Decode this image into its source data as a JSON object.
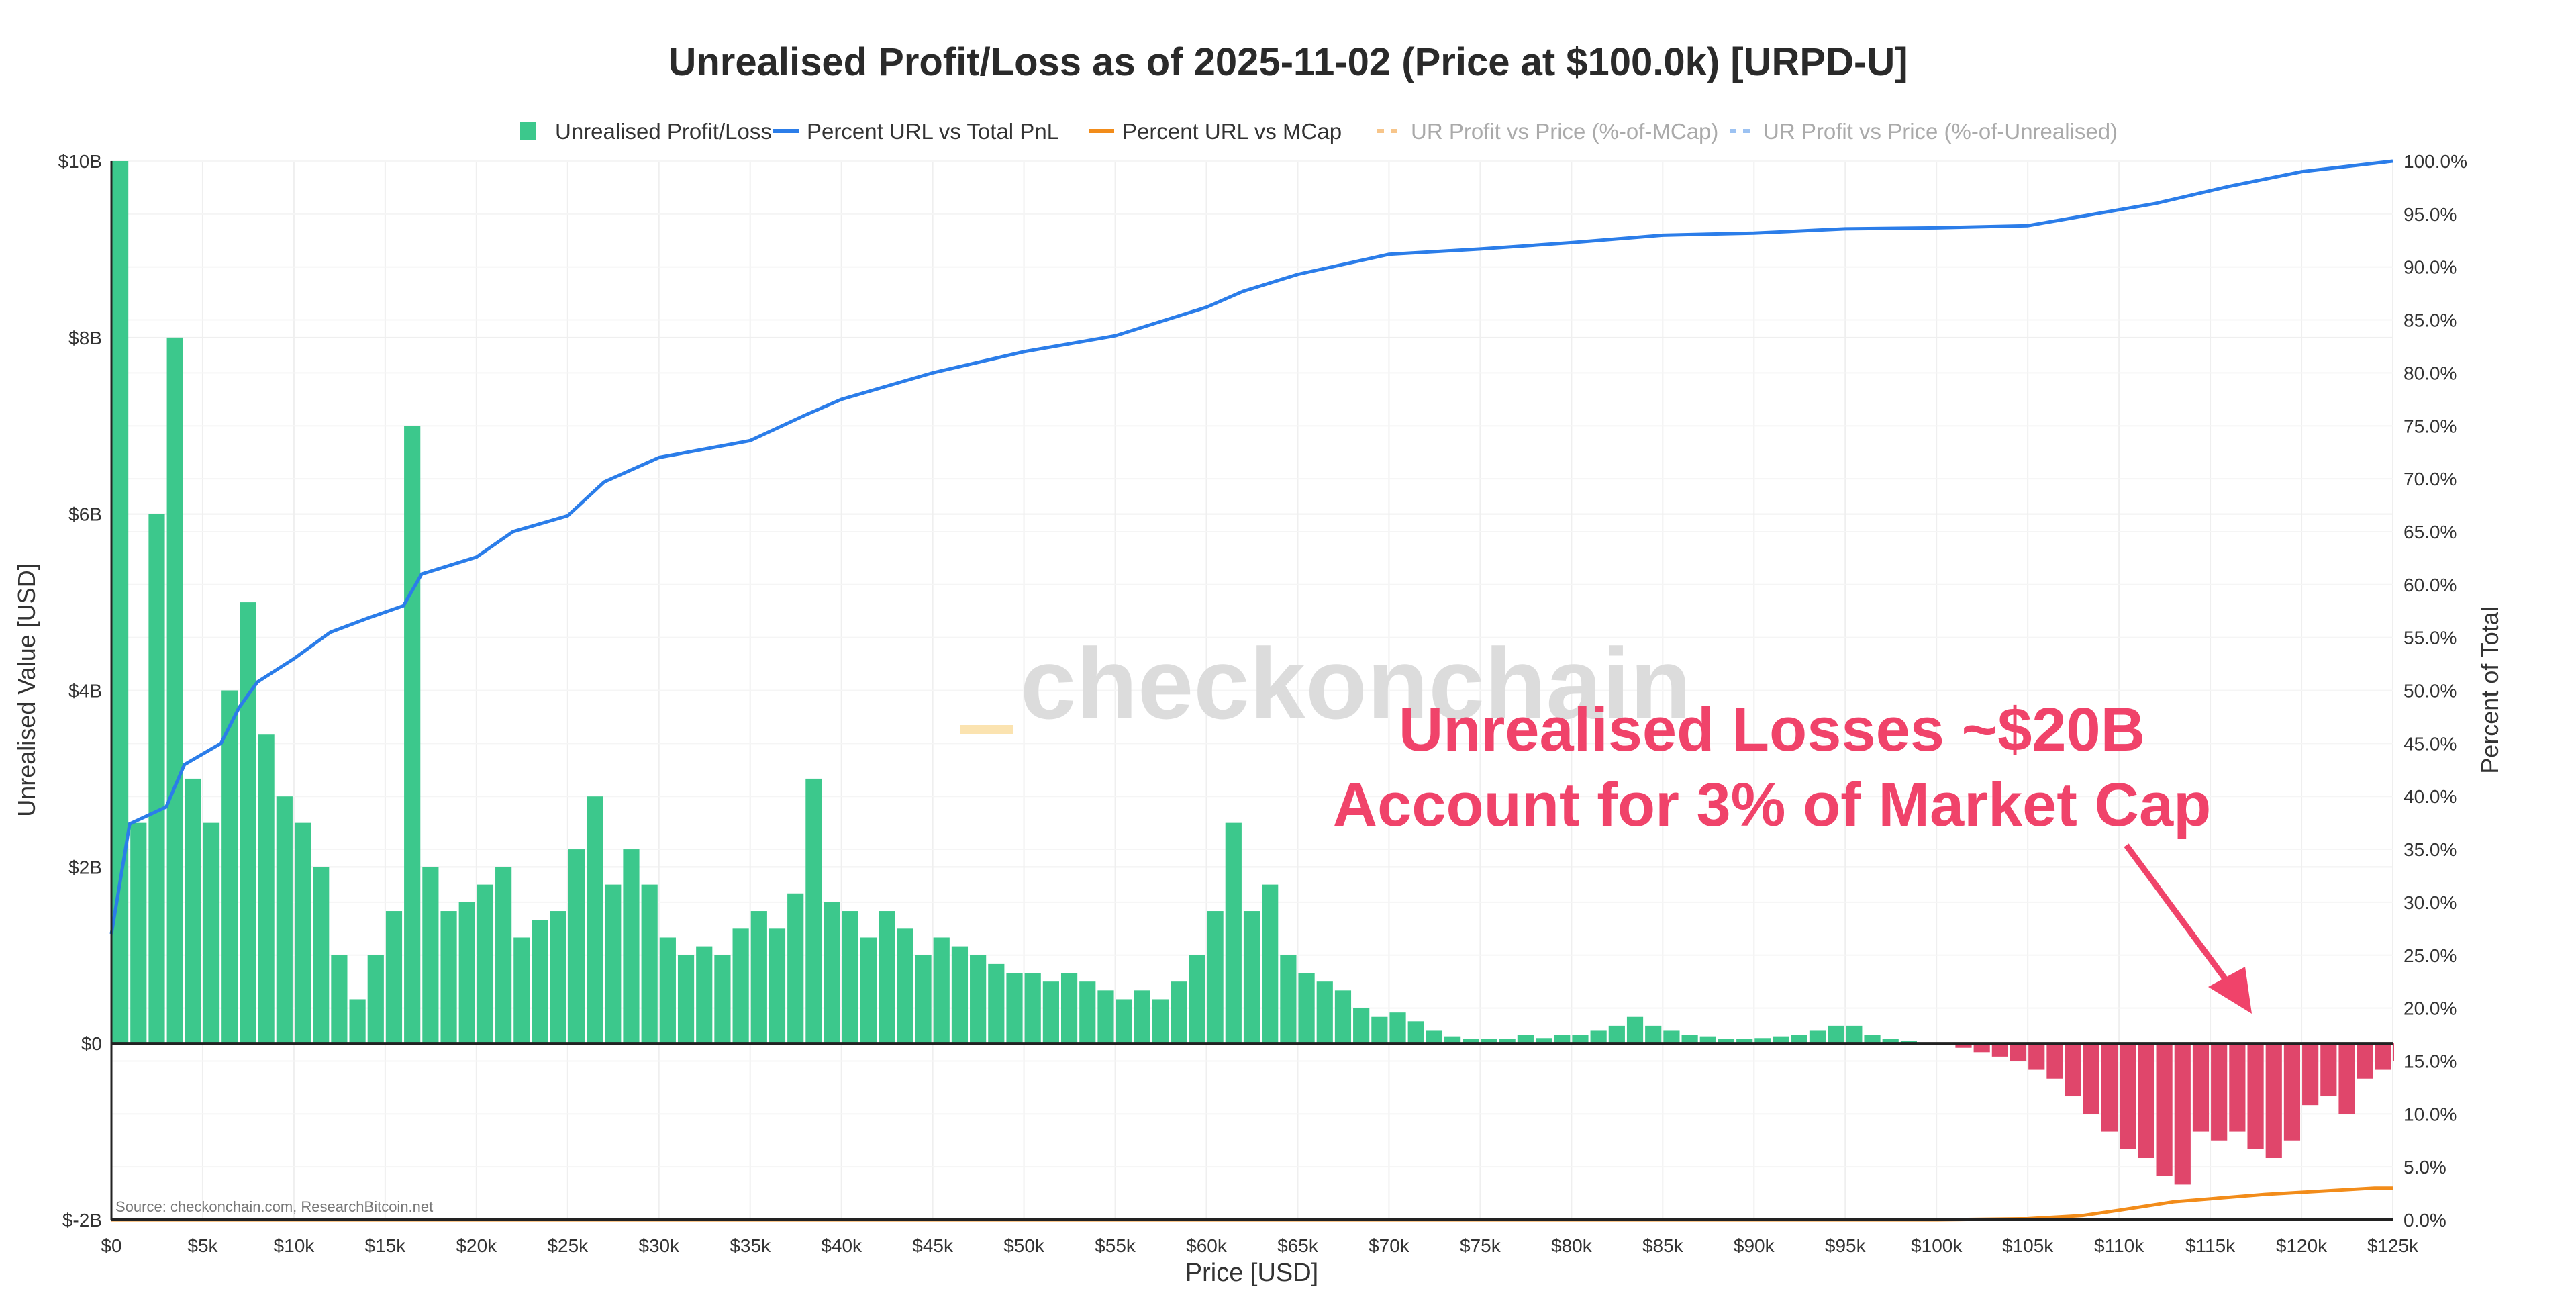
{
  "chart_data": {
    "type": "bar",
    "title": "Unrealised Profit/Loss as of 2025-11-02 (Price at $100.0k) [URPD-U]",
    "xlabel": "Price [USD]",
    "ylabel": "Unrealised Value [USD]",
    "y2label": "Percent of Total",
    "source": "Source: checkonchain.com, ResearchBitcoin.net",
    "watermark": "checkonchain",
    "annotation": [
      "Unrealised Losses ~$20B",
      "Account for 3% of Market Cap"
    ],
    "xlim": [
      0,
      125000
    ],
    "ylim": [
      -2,
      10
    ],
    "y2lim": [
      0,
      100
    ],
    "grid": true,
    "legend_placement": "top",
    "x_ticks": [
      "$0",
      "$5k",
      "$10k",
      "$15k",
      "$20k",
      "$25k",
      "$30k",
      "$35k",
      "$40k",
      "$45k",
      "$50k",
      "$55k",
      "$60k",
      "$65k",
      "$70k",
      "$75k",
      "$80k",
      "$85k",
      "$90k",
      "$95k",
      "$100k",
      "$105k",
      "$110k",
      "$115k",
      "$120k",
      "$125k"
    ],
    "y_ticks": [
      "$-2B",
      "$0",
      "$2B",
      "$4B",
      "$6B",
      "$8B",
      "$10B"
    ],
    "y2_ticks": [
      "0.0%",
      "5.0%",
      "10.0%",
      "15.0%",
      "20.0%",
      "25.0%",
      "30.0%",
      "35.0%",
      "40.0%",
      "45.0%",
      "50.0%",
      "55.0%",
      "60.0%",
      "65.0%",
      "70.0%",
      "75.0%",
      "80.0%",
      "85.0%",
      "90.0%",
      "95.0%",
      "100.0%"
    ],
    "legend": [
      {
        "name": "Unrealised Profit/Loss",
        "kind": "bar",
        "color": "#3cc88c"
      },
      {
        "name": "Percent URL vs Total PnL",
        "kind": "line",
        "color": "#2b7de9"
      },
      {
        "name": "Percent URL vs MCap",
        "kind": "line",
        "color": "#f28c1a"
      },
      {
        "name": "UR Profit vs Price (%-of-MCap)",
        "kind": "dash",
        "color": "#f7c58a",
        "hidden": true
      },
      {
        "name": "UR Profit vs Price (%-of-Unrealised)",
        "kind": "dash",
        "color": "#9cc2f2",
        "hidden": true
      }
    ],
    "colors": {
      "profit": "#3cc88c",
      "loss": "#e0466b",
      "annotation": "#f0436a"
    },
    "bar_bin_usd": 1000,
    "bars_billion_usd": [
      10,
      2.5,
      6,
      8,
      3,
      2.5,
      4,
      5,
      3.5,
      2.8,
      2.5,
      2,
      1,
      0.5,
      1,
      1.5,
      7,
      2,
      1.5,
      1.6,
      1.8,
      2,
      1.2,
      1.4,
      1.5,
      2.2,
      2.8,
      1.8,
      2.2,
      1.8,
      1.2,
      1.0,
      1.1,
      1.0,
      1.3,
      1.5,
      1.3,
      1.7,
      3,
      1.6,
      1.5,
      1.2,
      1.5,
      1.3,
      1.0,
      1.2,
      1.1,
      1.0,
      0.9,
      0.8,
      0.8,
      0.7,
      0.8,
      0.7,
      0.6,
      0.5,
      0.6,
      0.5,
      0.7,
      1.0,
      1.5,
      2.5,
      1.5,
      1.8,
      1.0,
      0.8,
      0.7,
      0.6,
      0.4,
      0.3,
      0.35,
      0.25,
      0.15,
      0.08,
      0.05,
      0.05,
      0.05,
      0.1,
      0.06,
      0.1,
      0.1,
      0.15,
      0.2,
      0.3,
      0.2,
      0.15,
      0.1,
      0.08,
      0.05,
      0.05,
      0.06,
      0.08,
      0.1,
      0.15,
      0.2,
      0.2,
      0.1,
      0.05,
      0.03,
      0.01,
      -0.02,
      -0.05,
      -0.1,
      -0.15,
      -0.2,
      -0.3,
      -0.4,
      -0.6,
      -0.8,
      -1.0,
      -1.2,
      -1.3,
      -1.5,
      -1.6,
      -1.0,
      -1.1,
      -1.0,
      -1.2,
      -1.3,
      -1.1,
      -0.7,
      -0.6,
      -0.8,
      -0.4,
      -0.3,
      -0.2
    ],
    "series": [
      {
        "name": "Percent URL vs Total PnL",
        "x": [
          0,
          1000,
          3000,
          4000,
          6000,
          7000,
          8000,
          10000,
          12000,
          14000,
          16000,
          17000,
          20000,
          22000,
          25000,
          27000,
          30000,
          35000,
          38000,
          40000,
          45000,
          50000,
          55000,
          60000,
          62000,
          65000,
          70000,
          75000,
          80000,
          85000,
          90000,
          95000,
          100000,
          105000,
          108000,
          112000,
          116000,
          120000,
          125000
        ],
        "y": [
          27,
          37.4,
          39,
          43,
          45,
          48.4,
          50.8,
          53,
          55.5,
          56.8,
          58,
          61,
          62.6,
          65,
          66.5,
          69.7,
          72,
          73.6,
          76,
          77.5,
          80,
          82,
          83.5,
          86.2,
          87.7,
          89.3,
          91.2,
          91.7,
          92.3,
          93,
          93.2,
          93.6,
          93.7,
          93.9,
          94.8,
          96,
          97.6,
          99,
          100
        ]
      },
      {
        "name": "Percent URL vs MCap",
        "x": [
          0,
          100000,
          105000,
          108000,
          110000,
          113000,
          118000,
          120000,
          124000,
          125000
        ],
        "y": [
          0,
          0,
          0.1,
          0.4,
          0.9,
          1.7,
          2.4,
          2.6,
          3.0,
          3.0
        ]
      }
    ]
  }
}
